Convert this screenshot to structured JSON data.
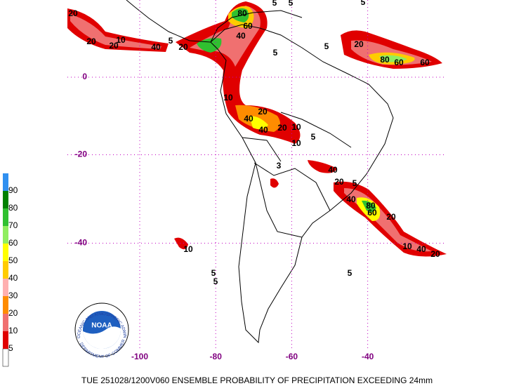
{
  "map": {
    "title": "TUE 251028/1200V060  ENSEMBLE PROBABILITY OF PRECIPITATION EXCEEDING 24mm",
    "lon_ticks": [
      -100,
      -80,
      -60,
      -40
    ],
    "lat_ticks": [
      0,
      -20,
      -40
    ],
    "colorbar": {
      "levels": [
        5,
        10,
        20,
        30,
        40,
        50,
        60,
        70,
        80,
        90
      ],
      "colors": [
        "#ffffff",
        "#e00000",
        "#f07070",
        "#ff8c00",
        "#ffb0b0",
        "#ffcc00",
        "#ffff00",
        "#90ee60",
        "#30c030",
        "#008000",
        "#3090f0"
      ]
    },
    "contour_labels": [
      "20",
      "20",
      "20",
      "10",
      "40",
      "5",
      "20",
      "5",
      "80",
      "60",
      "40",
      "5",
      "5",
      "20",
      "80",
      "60",
      "60",
      "10",
      "20",
      "40",
      "40",
      "20",
      "10",
      "5",
      "10",
      "3",
      "40",
      "20",
      "5",
      "40",
      "80",
      "60",
      "20",
      "10",
      "40",
      "20",
      "10",
      "5",
      "5",
      "5",
      "5",
      "5"
    ],
    "logo": {
      "name": "NOAA",
      "top": "NATIONAL OCEANIC AND ATMOSPHERIC ADMINISTRATION",
      "bottom": "U.S. DEPARTMENT OF COMMERCE"
    }
  }
}
